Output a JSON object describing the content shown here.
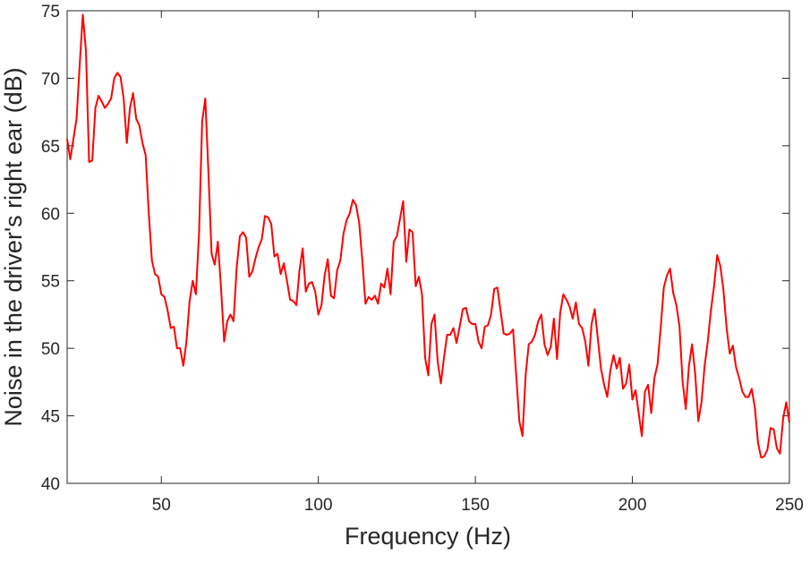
{
  "chart_data": {
    "type": "line",
    "x_label": "Frequency (Hz)",
    "y_label": "Noise in the driver's right ear (dB)",
    "xlim": [
      20,
      250
    ],
    "ylim": [
      40,
      75
    ],
    "xticks": [
      50,
      100,
      150,
      200,
      250
    ],
    "yticks": [
      40,
      45,
      50,
      55,
      60,
      65,
      70,
      75
    ],
    "x": [
      20,
      21,
      22,
      23,
      24,
      25,
      26,
      27,
      28,
      29,
      30,
      31,
      32,
      33,
      34,
      35,
      36,
      37,
      38,
      39,
      40,
      41,
      42,
      43,
      44,
      45,
      46,
      47,
      48,
      49,
      50,
      51,
      52,
      53,
      54,
      55,
      56,
      57,
      58,
      59,
      60,
      61,
      62,
      63,
      64,
      65,
      66,
      67,
      68,
      69,
      70,
      71,
      72,
      73,
      74,
      75,
      76,
      77,
      78,
      79,
      80,
      81,
      82,
      83,
      84,
      85,
      86,
      87,
      88,
      89,
      90,
      91,
      92,
      93,
      94,
      95,
      96,
      97,
      98,
      99,
      100,
      101,
      102,
      103,
      104,
      105,
      106,
      107,
      108,
      109,
      110,
      111,
      112,
      113,
      114,
      115,
      116,
      117,
      118,
      119,
      120,
      121,
      122,
      123,
      124,
      125,
      126,
      127,
      128,
      129,
      130,
      131,
      132,
      133,
      134,
      135,
      136,
      137,
      138,
      139,
      140,
      141,
      142,
      143,
      144,
      145,
      146,
      147,
      148,
      149,
      150,
      151,
      152,
      153,
      154,
      155,
      156,
      157,
      158,
      159,
      160,
      161,
      162,
      163,
      164,
      165,
      166,
      167,
      168,
      169,
      170,
      171,
      172,
      173,
      174,
      175,
      176,
      177,
      178,
      179,
      180,
      181,
      182,
      183,
      184,
      185,
      186,
      187,
      188,
      189,
      190,
      191,
      192,
      193,
      194,
      195,
      196,
      197,
      198,
      199,
      200,
      201,
      202,
      203,
      204,
      205,
      206,
      207,
      208,
      209,
      210,
      211,
      212,
      213,
      214,
      215,
      216,
      217,
      218,
      219,
      220,
      221,
      222,
      223,
      224,
      225,
      226,
      227,
      228,
      229,
      230,
      231,
      232,
      233,
      234,
      235,
      236,
      237,
      238,
      239,
      240,
      241,
      242,
      243,
      244,
      245,
      246,
      247,
      248,
      249,
      250
    ],
    "series": [
      {
        "color": "#ff0000",
        "values": [
          65.5,
          64,
          65.5,
          67,
          71,
          74.7,
          72,
          63.8,
          63.9,
          67.8,
          68.7,
          68.3,
          67.8,
          68.1,
          68.5,
          70,
          70.4,
          70.1,
          68.5,
          65.2,
          67.8,
          68.9,
          67,
          66.5,
          65.2,
          64.3,
          60,
          56.5,
          55.5,
          55.3,
          54,
          53.8,
          52.8,
          51.5,
          51.6,
          50,
          50,
          48.7,
          50.5,
          53.5,
          55,
          54,
          58.5,
          66.8,
          68.5,
          63,
          57,
          56.2,
          57.9,
          54.5,
          50.5,
          52,
          52.5,
          52,
          56,
          58.3,
          58.6,
          58.2,
          55.3,
          55.7,
          56.7,
          57.5,
          58.1,
          59.8,
          59.7,
          59.2,
          56.8,
          57,
          55.5,
          56.3,
          55,
          53.6,
          53.5,
          53.2,
          55.8,
          57.4,
          54.2,
          54.8,
          54.9,
          54.2,
          52.5,
          53.2,
          55.4,
          56.6,
          53.9,
          53.7,
          55.8,
          56.5,
          58.5,
          59.5,
          60,
          61,
          60.6,
          59.3,
          56.5,
          53.3,
          53.8,
          53.6,
          53.9,
          53.3,
          54.8,
          54.5,
          55.9,
          54,
          57.9,
          58.3,
          59.6,
          60.9,
          56.4,
          58.8,
          58.6,
          54.6,
          55.3,
          54,
          49.3,
          48,
          51.8,
          52.5,
          49,
          47.4,
          49.3,
          51,
          51,
          51.5,
          50.4,
          51.6,
          52.9,
          53,
          52,
          51.8,
          51.8,
          50.5,
          50,
          51.6,
          51.7,
          52.5,
          54.4,
          54.5,
          52.8,
          51.1,
          51,
          51.1,
          51.4,
          48,
          44.6,
          43.5,
          48,
          50.3,
          50.5,
          51,
          52,
          52.5,
          50.3,
          49.5,
          50.1,
          52.2,
          49.2,
          52.6,
          54,
          53.6,
          53.1,
          52.2,
          53.4,
          51.8,
          51.5,
          50.5,
          48.7,
          51.8,
          52.9,
          50.7,
          48.5,
          47.3,
          46.4,
          48.4,
          49.5,
          48.5,
          49.3,
          47,
          47.4,
          48.8,
          46.2,
          46.9,
          45.2,
          43.5,
          46.8,
          47.3,
          45.2,
          47.8,
          48.8,
          51.5,
          54.5,
          55.4,
          55.9,
          54.1,
          53.2,
          51.6,
          47.5,
          45.5,
          48.7,
          50.3,
          48.1,
          44.6,
          46,
          48.7,
          50.5,
          52.8,
          54.6,
          56.9,
          56.1,
          54.3,
          51.5,
          49.6,
          50.2,
          48.6,
          47.8,
          46.8,
          46.4,
          46.4,
          47,
          45.6,
          43,
          41.9,
          42,
          42.5,
          44.1,
          44,
          42.6,
          42.2,
          44.8,
          46,
          44.5
        ]
      }
    ]
  }
}
